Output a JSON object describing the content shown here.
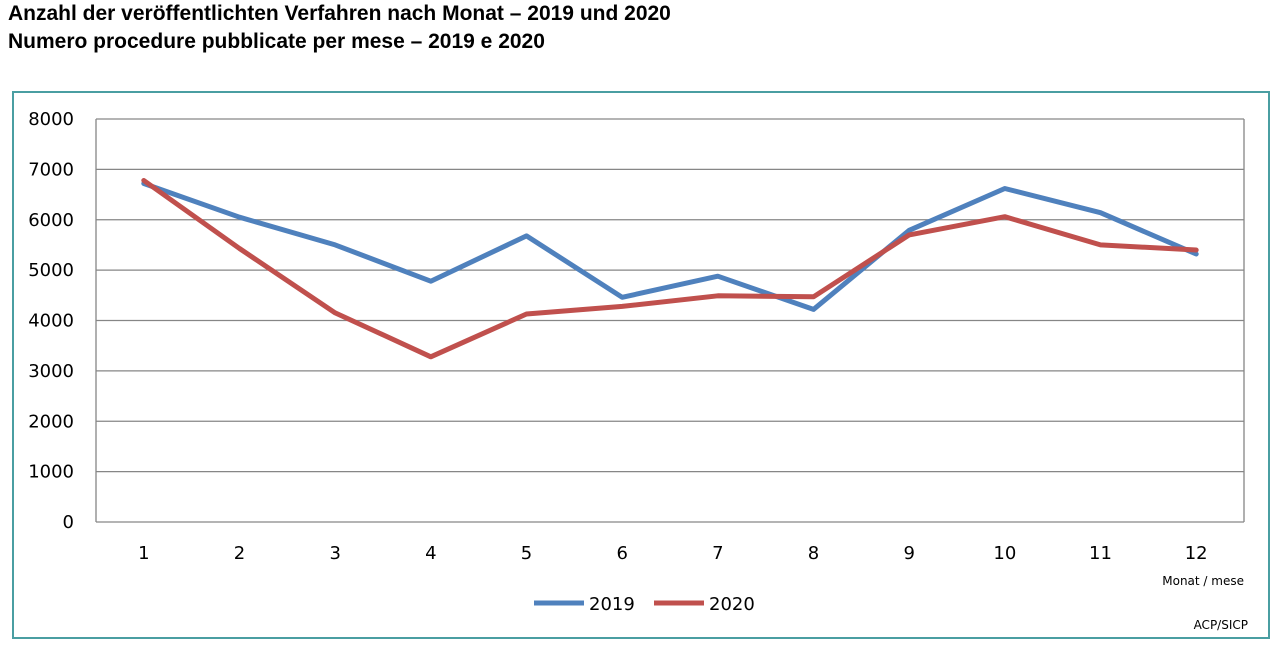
{
  "title_de": "Anzahl der veröffentlichten Verfahren nach Monat – 2019 und 2020",
  "title_it": "Numero procedure pubblicate per mese – 2019 e 2020",
  "source": "ACP/SICP",
  "colors": {
    "frame": "#4a9ea2",
    "grid": "#868686",
    "s2019": "#4f81bd",
    "s2020": "#c0504d"
  },
  "chart_data": {
    "type": "line",
    "title": "Anzahl der veröffentlichten Verfahren nach Monat – 2019 und 2020",
    "subtitle": "Numero procedure pubblicate per mese – 2019 e 2020",
    "xlabel": "Monat / mese",
    "ylabel": "",
    "x": [
      1,
      2,
      3,
      4,
      5,
      6,
      7,
      8,
      9,
      10,
      11,
      12
    ],
    "ylim": [
      0,
      8000
    ],
    "yticks": [
      0,
      1000,
      2000,
      3000,
      4000,
      5000,
      6000,
      7000,
      8000
    ],
    "grid": true,
    "legend_position": "bottom",
    "series": [
      {
        "name": "2019",
        "color": "#4f81bd",
        "values": [
          6720,
          6050,
          5500,
          4780,
          5680,
          4460,
          4880,
          4220,
          5790,
          6620,
          6140,
          5320
        ]
      },
      {
        "name": "2020",
        "color": "#c0504d",
        "values": [
          6780,
          5430,
          4150,
          3280,
          4130,
          4280,
          4490,
          4470,
          5700,
          6060,
          5500,
          5400
        ]
      }
    ]
  }
}
